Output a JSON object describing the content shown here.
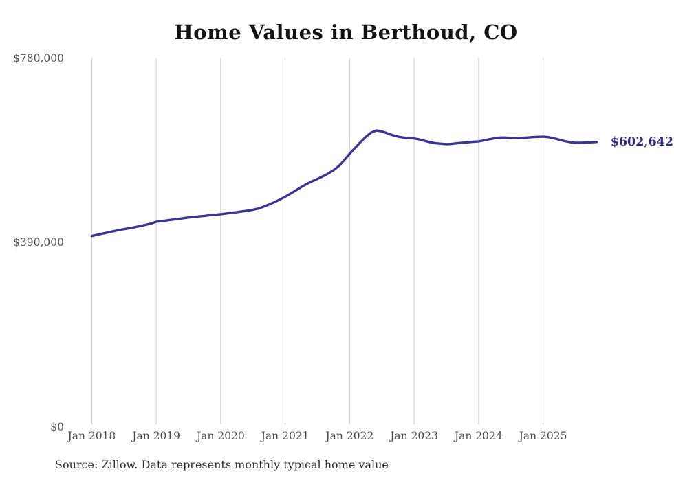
{
  "title": "Home Values in Berthoud, CO",
  "source_note": "Source: Zillow. Data represents monthly typical home value",
  "latest_value_label": "$602,642",
  "colors": {
    "line": "#3a3494",
    "latest_label": "#2e2b87",
    "grid": "#cccccc",
    "axis_label": "#4a4a4a",
    "title": "#141414",
    "source": "#2e2e2e",
    "background": "#ffffff"
  },
  "y_axis": {
    "ticks": [
      {
        "label": "$0",
        "value": 0
      },
      {
        "label": "$390,000",
        "value": 390000
      },
      {
        "label": "$780,000",
        "value": 780000
      }
    ],
    "max": 780000
  },
  "x_axis": {
    "ticks": [
      {
        "label": "Jan 2018",
        "month_index": 0
      },
      {
        "label": "Jan 2019",
        "month_index": 12
      },
      {
        "label": "Jan 2020",
        "month_index": 24
      },
      {
        "label": "Jan 2021",
        "month_index": 36
      },
      {
        "label": "Jan 2022",
        "month_index": 48
      },
      {
        "label": "Jan 2023",
        "month_index": 60
      },
      {
        "label": "Jan 2024",
        "month_index": 72
      },
      {
        "label": "Jan 2025",
        "month_index": 84
      }
    ]
  },
  "chart_data": {
    "type": "line",
    "title": "Home Values in Berthoud, CO",
    "series_name": "Monthly typical home value (USD)",
    "frequency": "monthly",
    "start_month": "2018-01",
    "end_month": "2025-11",
    "ylim": [
      0,
      780000
    ],
    "grid": "vertical-only",
    "legend": "none",
    "latest_value": 602642,
    "values": [
      404000,
      406500,
      409000,
      411500,
      414000,
      416500,
      418500,
      420500,
      422500,
      425000,
      427500,
      430000,
      434000,
      435500,
      437000,
      438500,
      440000,
      441500,
      443000,
      444000,
      445500,
      446500,
      448000,
      449000,
      450000,
      451500,
      453000,
      454500,
      456000,
      457500,
      459500,
      462000,
      466000,
      470500,
      475500,
      481000,
      487000,
      493500,
      500500,
      507500,
      514000,
      519500,
      524500,
      530000,
      536000,
      543000,
      552000,
      564500,
      578000,
      590000,
      602000,
      613500,
      622500,
      627000,
      625000,
      621000,
      617000,
      614000,
      612000,
      611000,
      610000,
      608000,
      605000,
      602000,
      600000,
      599000,
      598000,
      598500,
      600000,
      601000,
      602000,
      603000,
      604000,
      606000,
      608500,
      610500,
      612000,
      612000,
      611000,
      611000,
      611500,
      612000,
      613000,
      613500,
      614000,
      613000,
      610500,
      607500,
      604500,
      602500,
      601000,
      601000,
      601500,
      602000,
      602642
    ]
  }
}
